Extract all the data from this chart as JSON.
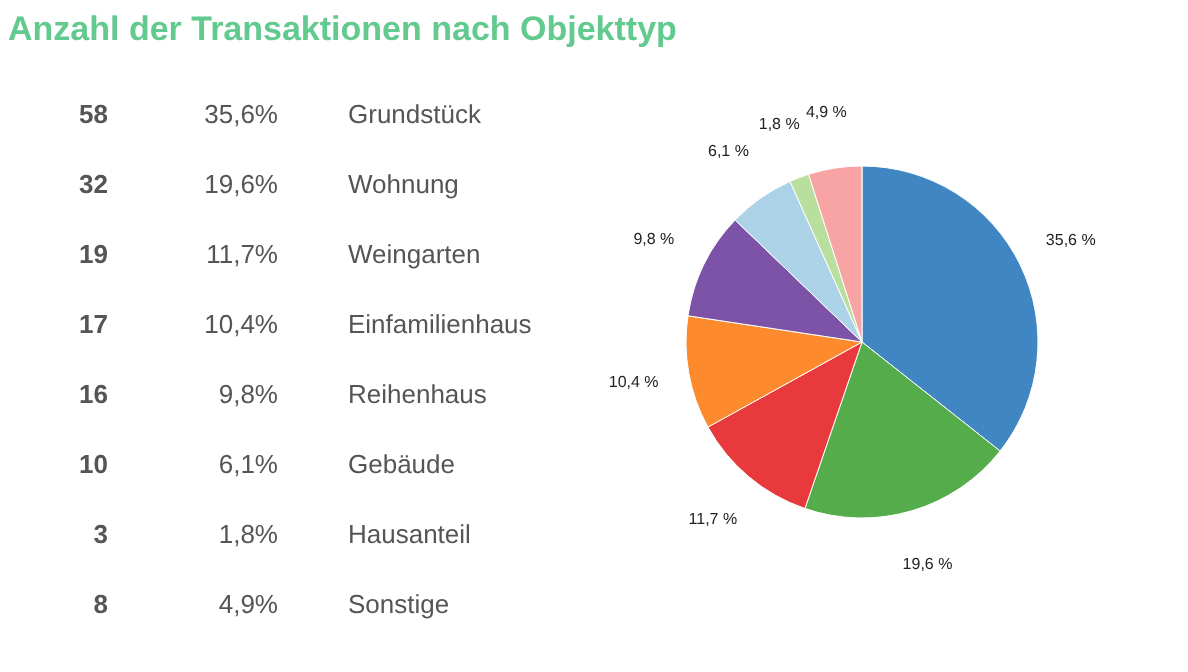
{
  "chart_data": [
    {
      "type": "other",
      "title": "Anzahl der Transaktionen nach Objekttyp",
      "annotations": [
        "58",
        "35,6%",
        "Grundstück",
        "32",
        "19,6%",
        "Wohnung",
        "19",
        "11,7%",
        "Weingarten",
        "17",
        "10,4%",
        "Einfamilienhaus",
        "16",
        "9,8%",
        "Reihenhaus",
        "10",
        "6,1%",
        "Gebäude",
        "3",
        "1,8%",
        "Hausanteil",
        "8",
        "4,9%",
        "Sonstige"
      ]
    },
    {
      "type": "pie",
      "categories": [
        null,
        null,
        null,
        null,
        null,
        null,
        null,
        null
      ],
      "values": [
        35.6,
        19.6,
        11.7,
        10.4,
        9.8,
        6.1,
        1.8,
        4.9
      ],
      "value_labels": [
        "35,6 %",
        "19,6 %",
        "11,7 %",
        "10,4 %",
        "9,8 %",
        "6,1 %",
        "1,8 %",
        "4,9 %"
      ],
      "colors": [
        "#3f86c2",
        "#55ac4a",
        "#e8393c",
        "#fd8a2c",
        "#7c53a6",
        "#acd2e7",
        "#b9df9f",
        "#f8a4a4"
      ]
    }
  ]
}
